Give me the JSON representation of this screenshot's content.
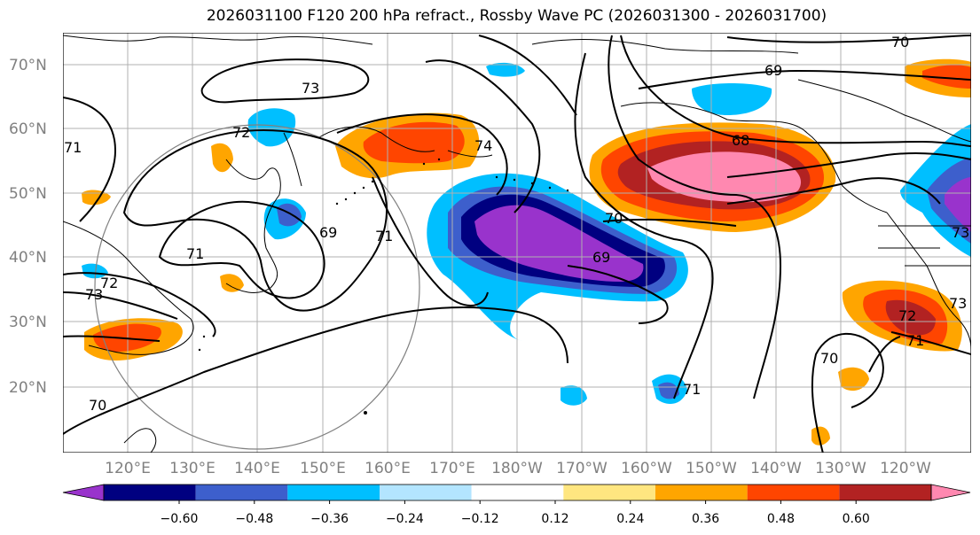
{
  "title": "2026031100 F120 200 hPa refract., Rossby Wave PC (2026031300 - 2026031700)",
  "map": {
    "lat_labels": [
      "70°N",
      "60°N",
      "50°N",
      "40°N",
      "30°N",
      "20°N"
    ],
    "lon_labels": [
      "120°E",
      "130°E",
      "140°E",
      "150°E",
      "160°E",
      "170°E",
      "180°W",
      "170°W",
      "160°W",
      "150°W",
      "140°W",
      "130°W",
      "120°W"
    ],
    "contour_labels": [
      "70",
      "69",
      "73",
      "72",
      "71",
      "74",
      "68",
      "69",
      "71",
      "71",
      "70",
      "72",
      "73",
      "70",
      "72",
      "73",
      "71",
      "70",
      "71",
      "69",
      "73"
    ]
  },
  "colorbar": {
    "colors": [
      "#9933cc",
      "#000080",
      "#3d5fcc",
      "#00bfff",
      "#b3e5ff",
      "#ffffff",
      "#ffe680",
      "#ffa500",
      "#ff4500",
      "#b22222",
      "#ff88b0"
    ],
    "ticks": [
      "−0.60",
      "−0.48",
      "−0.36",
      "−0.24",
      "−0.12",
      "0.12",
      "0.24",
      "0.36",
      "0.48",
      "0.60"
    ]
  }
}
